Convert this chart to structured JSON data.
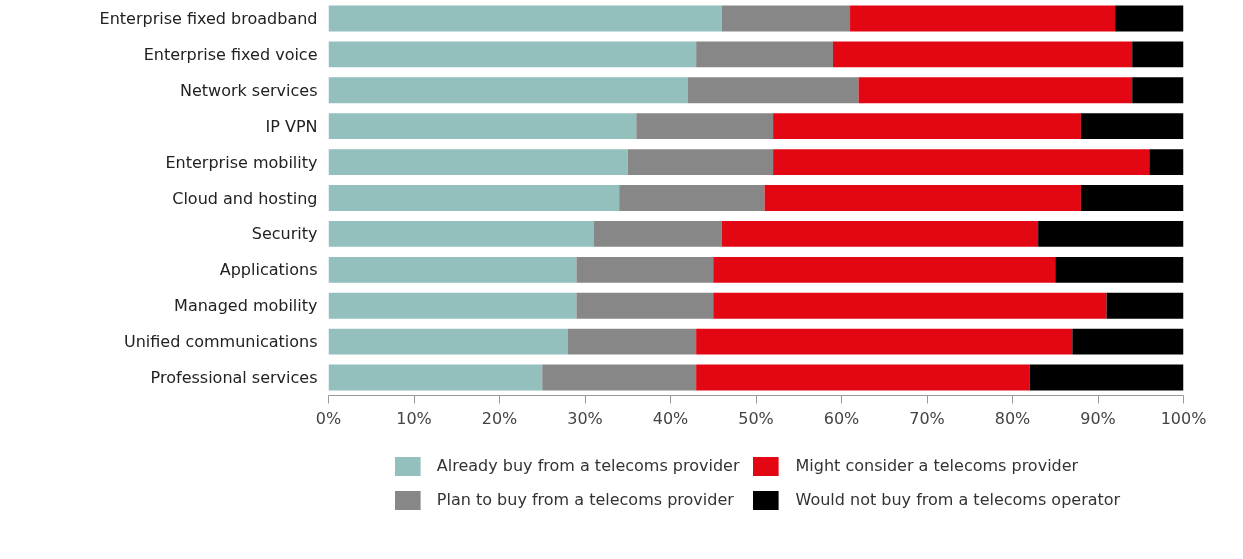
{
  "chart_data": {
    "type": "bar",
    "orientation": "horizontal",
    "stacked": true,
    "categories": [
      "Enterprise fixed broadband",
      "Enterprise fixed voice",
      "Network services",
      "IP VPN",
      "Enterprise mobility",
      "Cloud and hosting",
      "Security",
      "Applications",
      "Managed mobility",
      "Unified communications",
      "Professional services"
    ],
    "series": [
      {
        "name": "Already buy from a telecoms provider",
        "color": "#93c0bc",
        "values": [
          46,
          43,
          42,
          36,
          35,
          34,
          31,
          29,
          29,
          28,
          25
        ]
      },
      {
        "name": "Plan to buy from a telecoms provider",
        "color": "#878787",
        "values": [
          15,
          16,
          20,
          16,
          17,
          17,
          15,
          16,
          16,
          15,
          18
        ]
      },
      {
        "name": "Might consider a telecoms provider",
        "color": "#e30613",
        "values": [
          31,
          35,
          32,
          36,
          44,
          37,
          37,
          40,
          46,
          44,
          39
        ]
      },
      {
        "name": "Would not buy from a telecoms operator",
        "color": "#000000",
        "values": [
          8,
          6,
          6,
          12,
          4,
          12,
          17,
          15,
          9,
          13,
          18
        ]
      }
    ],
    "xlim": [
      0,
      100
    ],
    "xticks": [
      {
        "value": 0,
        "label": "0%"
      },
      {
        "value": 10,
        "label": "10%"
      },
      {
        "value": 20,
        "label": "20%"
      },
      {
        "value": 30,
        "label": "30%"
      },
      {
        "value": 40,
        "label": "40%"
      },
      {
        "value": 50,
        "label": "50%"
      },
      {
        "value": 60,
        "label": "60%"
      },
      {
        "value": 70,
        "label": "70%"
      },
      {
        "value": 80,
        "label": "80%"
      },
      {
        "value": 90,
        "label": "90%"
      },
      {
        "value": 100,
        "label": "100%"
      }
    ],
    "grid": false,
    "legend": "bottom"
  }
}
